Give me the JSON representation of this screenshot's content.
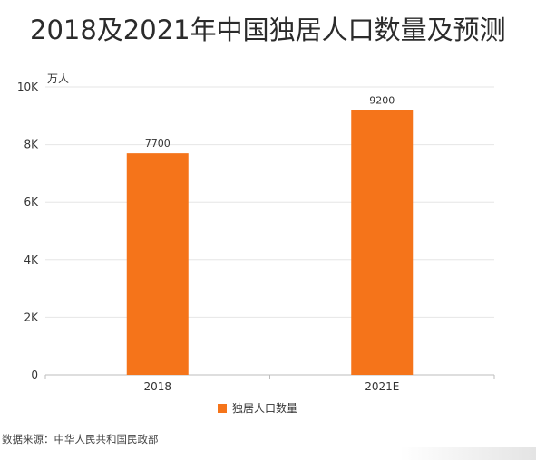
{
  "title": "2018及2021年中国独居人口数量及预测",
  "unit_label": "万人",
  "source": "数据来源：中华人民共和国民政部",
  "colors": {
    "bar": "#F5741A",
    "grid": "#E6E6E6",
    "axis_text": "#333333",
    "baseline": "#BDBDBD"
  },
  "chart_data": {
    "type": "bar",
    "title": "2018及2021年中国独居人口数量及预测",
    "categories": [
      "2018",
      "2021E"
    ],
    "series": [
      {
        "name": "独居人口数量",
        "values": [
          7700,
          9200
        ]
      }
    ],
    "data_labels": [
      "7700",
      "9200"
    ],
    "ylabel": "万人",
    "xlabel": "",
    "ylim": [
      0,
      10000
    ],
    "yticks": [
      0,
      2000,
      4000,
      6000,
      8000,
      10000
    ],
    "ytick_labels": [
      "0",
      "2K",
      "4K",
      "6K",
      "8K",
      "10K"
    ],
    "grid": true,
    "legend": "bottom"
  }
}
